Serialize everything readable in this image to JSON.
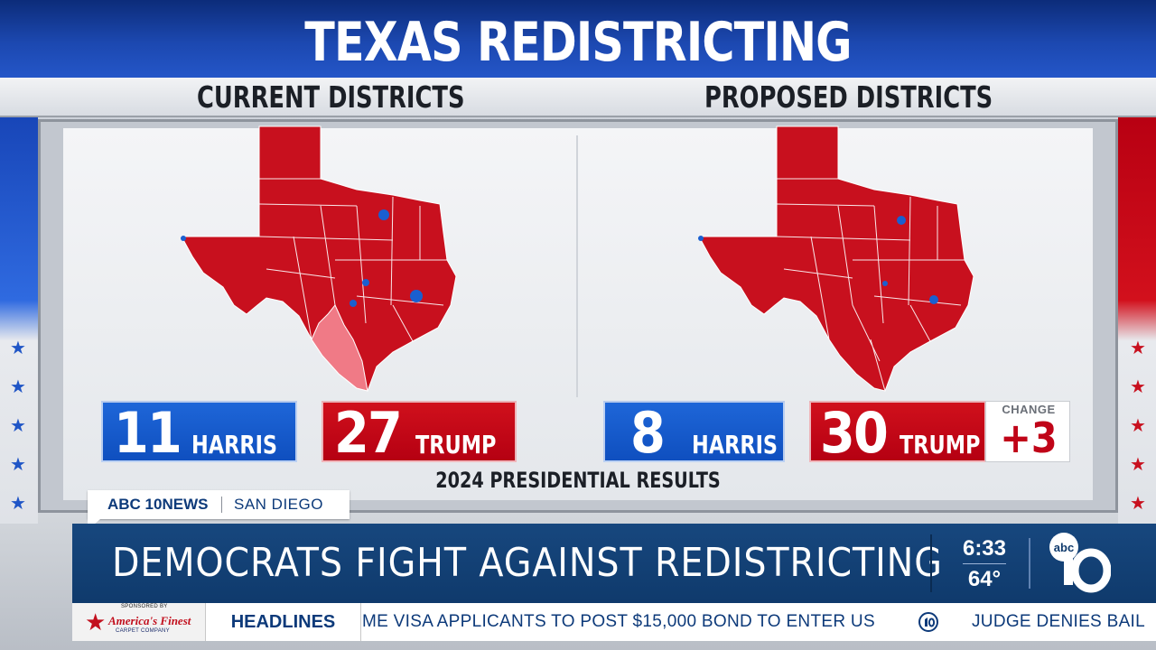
{
  "title": "TEXAS REDISTRICTING",
  "current": {
    "label": "CURRENT DISTRICTS",
    "harris": {
      "count": "11",
      "name": "HARRIS"
    },
    "trump": {
      "count": "27",
      "name": "TRUMP"
    }
  },
  "proposed": {
    "label": "PROPOSED DISTRICTS",
    "harris": {
      "count": "8",
      "name": "HARRIS"
    },
    "trump": {
      "count": "30",
      "name": "TRUMP"
    },
    "change_label": "CHANGE",
    "change_value": "+3"
  },
  "footnote": "2024 PRESIDENTIAL RESULTS",
  "bug": {
    "station": "ABC 10NEWS",
    "city": "SAN DIEGO"
  },
  "headline": "DEMOCRATS FIGHT AGAINST REDISTRICTING",
  "time": "6:33",
  "temperature": "64°",
  "logo": {
    "network": "abc",
    "channel": "10"
  },
  "ticker": {
    "sponsor_caption": "SPONSORED BY",
    "sponsor_name": "America's Finest",
    "sponsor_sub": "CARPET COMPANY",
    "label": "HEADLINES",
    "items": [
      "ME VISA APPLICANTS TO POST $15,000 BOND TO ENTER US",
      "JUDGE DENIES BAIL"
    ]
  },
  "colors": {
    "republican": "#c8101e",
    "republican_light": "#f07a86",
    "democrat": "#1a5fd0",
    "headline_bar": "#12427a"
  }
}
